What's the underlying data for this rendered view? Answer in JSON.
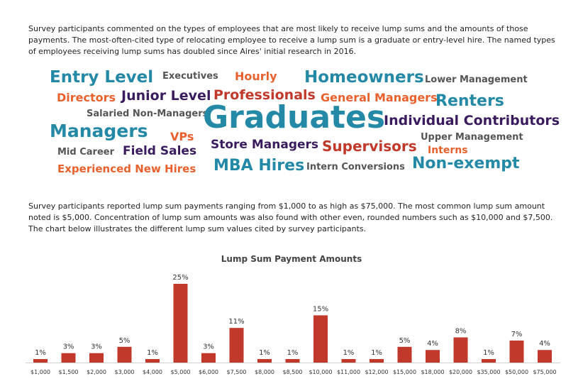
{
  "intro_paragraph": "Survey participants commented on the types of employees that are most likely to receive lump sums and the amounts of those payments. The most-often-cited type of relocating employee to receive a lump sum is a graduate or entry-level hire. The named types of employees receiving lump sums has doubled since Aires' initial research in 2016.",
  "word_cloud": [
    {
      "text": "Entry Level",
      "color": "teal"
    },
    {
      "text": "Executives",
      "color": "gray"
    },
    {
      "text": "Hourly",
      "color": "orange"
    },
    {
      "text": "Homeowners",
      "color": "teal"
    },
    {
      "text": "Lower Management",
      "color": "gray"
    },
    {
      "text": "Directors",
      "color": "orange"
    },
    {
      "text": "Junior Level",
      "color": "purple"
    },
    {
      "text": "Professionals",
      "color": "red"
    },
    {
      "text": "General Managers",
      "color": "orange"
    },
    {
      "text": "Renters",
      "color": "teal"
    },
    {
      "text": "Salaried Non-Managers",
      "color": "gray"
    },
    {
      "text": "Graduates",
      "color": "teal"
    },
    {
      "text": "Individual Contributors",
      "color": "purple"
    },
    {
      "text": "Managers",
      "color": "teal"
    },
    {
      "text": "VPs",
      "color": "orange"
    },
    {
      "text": "Upper Management",
      "color": "gray"
    },
    {
      "text": "Mid Career",
      "color": "gray"
    },
    {
      "text": "Field Sales",
      "color": "purple"
    },
    {
      "text": "Store Managers",
      "color": "purple"
    },
    {
      "text": "Supervisors",
      "color": "red"
    },
    {
      "text": "Interns",
      "color": "orange"
    },
    {
      "text": "Experienced New Hires",
      "color": "orange"
    },
    {
      "text": "MBA Hires",
      "color": "teal"
    },
    {
      "text": "Intern Conversions",
      "color": "gray"
    },
    {
      "text": "Non-exempt",
      "color": "teal"
    }
  ],
  "second_paragraph": "Survey participants reported lump sum payments ranging from $1,000 to as high as $75,000. The most common lump sum amount noted is $5,000. Concentration of lump sum amounts was also found with other even, rounded numbers such as $10,000 and $7,500. The chart below illustrates the different lump sum values cited by survey participants.",
  "chart_data": {
    "type": "bar",
    "title": "Lump Sum Payment Amounts",
    "categories": [
      "$1,000",
      "$1,500",
      "$2,000",
      "$3,000",
      "$4,000",
      "$5,000",
      "$6,000",
      "$7,500",
      "$8,000",
      "$8,500",
      "$10,000",
      "$11,000",
      "$12,000",
      "$15,000",
      "$18,000",
      "$20,000",
      "$35,000",
      "$50,000",
      "$75,000"
    ],
    "values": [
      1,
      3,
      3,
      5,
      1,
      25,
      3,
      11,
      1,
      1,
      15,
      1,
      1,
      5,
      4,
      8,
      1,
      7,
      4
    ],
    "data_labels": [
      "1%",
      "3%",
      "3%",
      "5%",
      "1%",
      "25%",
      "3%",
      "11%",
      "1%",
      "1%",
      "15%",
      "1%",
      "1%",
      "5%",
      "4%",
      "8%",
      "1%",
      "7%",
      "4%"
    ],
    "unit": "%",
    "bar_color": "#c0392b",
    "grid": false,
    "legend": "none"
  }
}
